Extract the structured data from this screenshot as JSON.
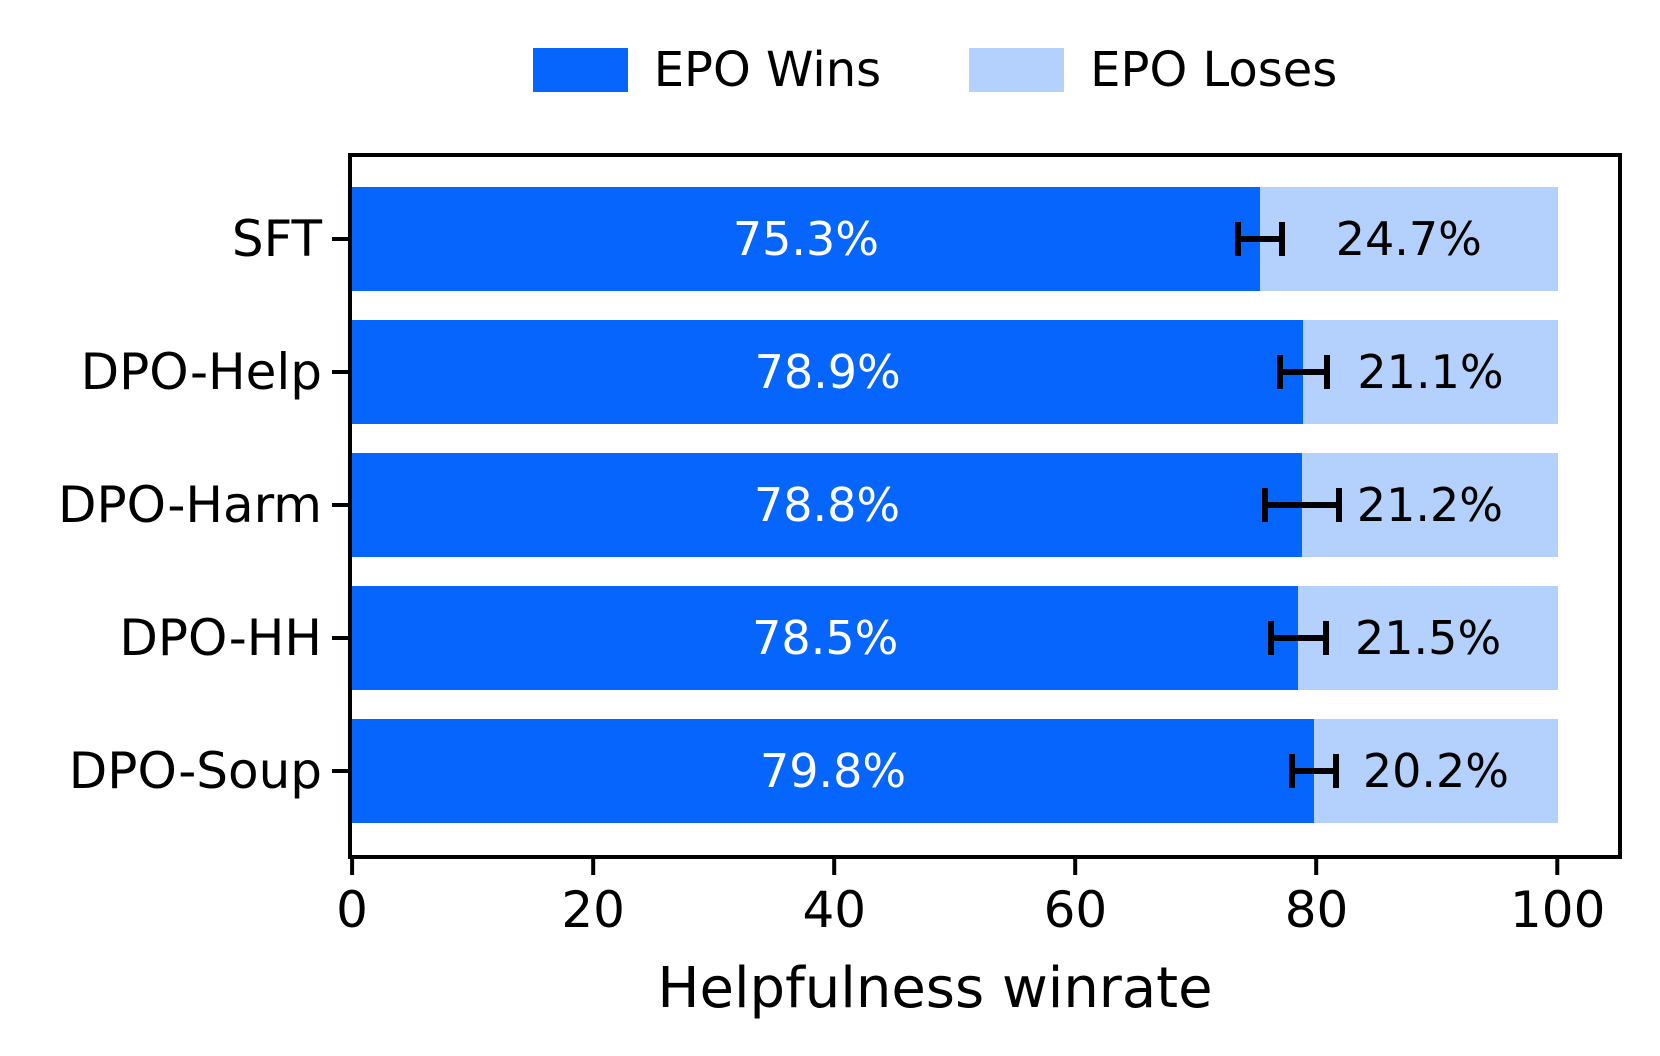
{
  "chart_data": {
    "type": "bar",
    "orientation": "horizontal",
    "stacked": true,
    "title": "",
    "xlabel": "Helpfulness winrate",
    "ylabel": "",
    "xlim": [
      0,
      105
    ],
    "x_ticks": [
      0,
      20,
      40,
      60,
      80,
      100
    ],
    "grid": false,
    "legend_position": "top",
    "categories": [
      "SFT",
      "DPO-Help",
      "DPO-Harm",
      "DPO-HH",
      "DPO-Soup"
    ],
    "series": [
      {
        "name": "EPO Wins",
        "color": "#0665FD",
        "values": [
          75.3,
          78.9,
          78.8,
          78.5,
          79.8
        ],
        "labels": [
          "75.3%",
          "78.9%",
          "78.8%",
          "78.5%",
          "79.8%"
        ]
      },
      {
        "name": "EPO Loses",
        "color": "#B3D1FC",
        "values": [
          24.7,
          21.1,
          21.2,
          21.5,
          20.2
        ],
        "labels": [
          "24.7%",
          "21.1%",
          "21.2%",
          "21.5%",
          "20.2%"
        ]
      }
    ],
    "error_bars": {
      "color": "#000000",
      "center": [
        75.3,
        78.9,
        78.8,
        78.5,
        79.8
      ],
      "plus_minus": [
        2.1,
        2.2,
        3.3,
        2.5,
        2.1
      ]
    }
  }
}
